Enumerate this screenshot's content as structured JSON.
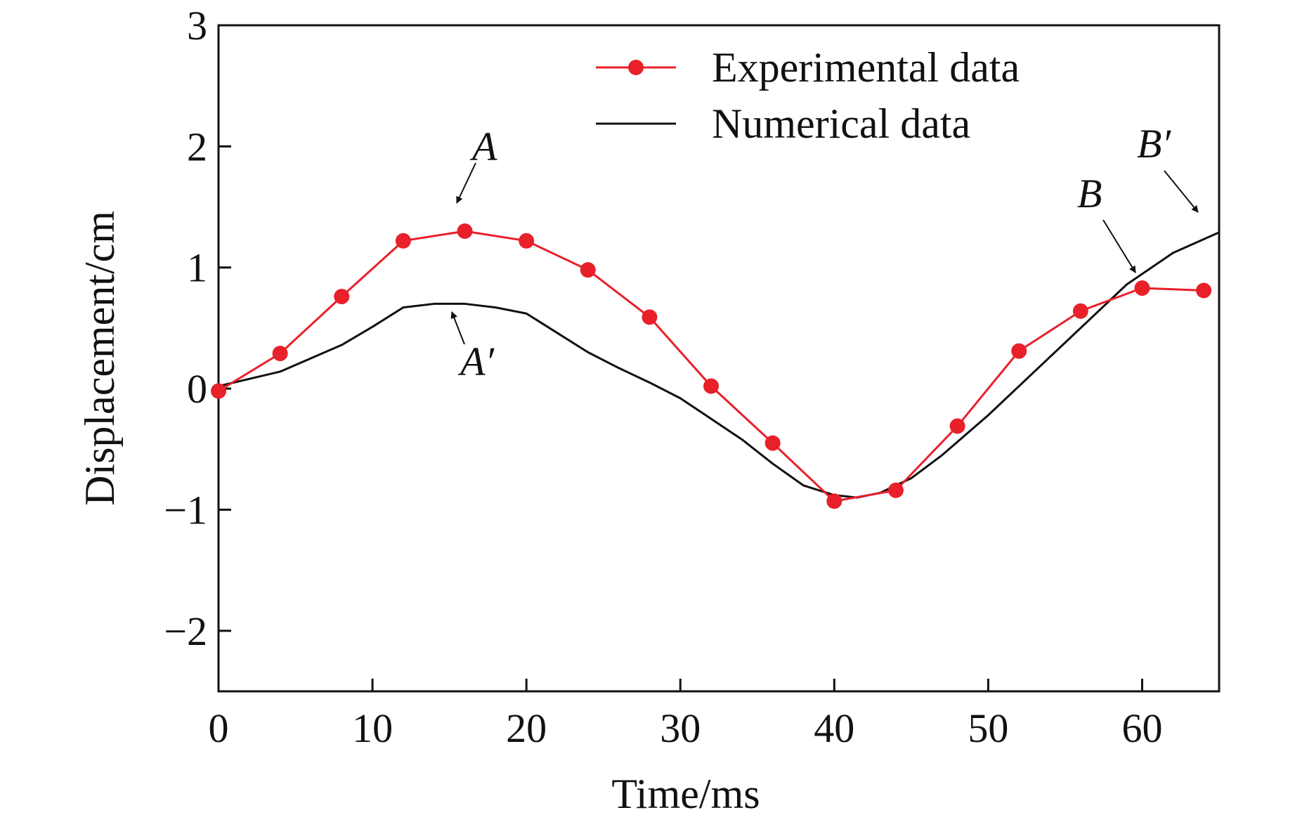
{
  "chart_data": {
    "type": "line",
    "title": "",
    "xlabel": "Time/ms",
    "ylabel": "Displacement/cm",
    "xlim": [
      0,
      65
    ],
    "ylim": [
      -2.5,
      3
    ],
    "xticks": [
      0,
      10,
      20,
      30,
      40,
      50,
      60
    ],
    "yticks": [
      -2,
      -1,
      0,
      1,
      2,
      3
    ],
    "xtick_labels": [
      "0",
      "10",
      "20",
      "30",
      "40",
      "50",
      "60"
    ],
    "ytick_labels": [
      "−2",
      "−1",
      "0",
      "1",
      "2",
      "3"
    ],
    "grid": false,
    "legend_position": "top-right",
    "series": [
      {
        "name": "Experimental data",
        "color": "#e8202a",
        "marker": "circle",
        "x": [
          0,
          4,
          8,
          12,
          16,
          20,
          24,
          28,
          32,
          36,
          40,
          44,
          48,
          52,
          56,
          60,
          64
        ],
        "y": [
          -0.02,
          0.29,
          0.76,
          1.22,
          1.3,
          1.22,
          0.98,
          0.59,
          0.02,
          -0.45,
          -0.93,
          -0.84,
          -0.31,
          0.31,
          0.64,
          0.83,
          0.81
        ]
      },
      {
        "name": "Numerical data",
        "color": "#111111",
        "marker": "none",
        "x": [
          0,
          4,
          8,
          10,
          12,
          14,
          16,
          18,
          20,
          22,
          24,
          26,
          28,
          30,
          32,
          34,
          36,
          38,
          40,
          41.5,
          43,
          45,
          47,
          50,
          53,
          56,
          59,
          62,
          65
        ],
        "y": [
          0.02,
          0.14,
          0.36,
          0.51,
          0.67,
          0.7,
          0.7,
          0.67,
          0.62,
          0.46,
          0.3,
          0.17,
          0.05,
          -0.08,
          -0.25,
          -0.42,
          -0.62,
          -0.8,
          -0.88,
          -0.9,
          -0.86,
          -0.74,
          -0.55,
          -0.22,
          0.14,
          0.5,
          0.86,
          1.12,
          1.29
        ]
      }
    ],
    "annotations": [
      {
        "label": "A",
        "x": 16,
        "y": 1.3
      },
      {
        "label": "A′",
        "x": 15,
        "y": 0.7
      },
      {
        "label": "B",
        "x": 59.7,
        "y": 0.9
      },
      {
        "label": "B′",
        "x": 64.2,
        "y": 1.25
      }
    ]
  }
}
